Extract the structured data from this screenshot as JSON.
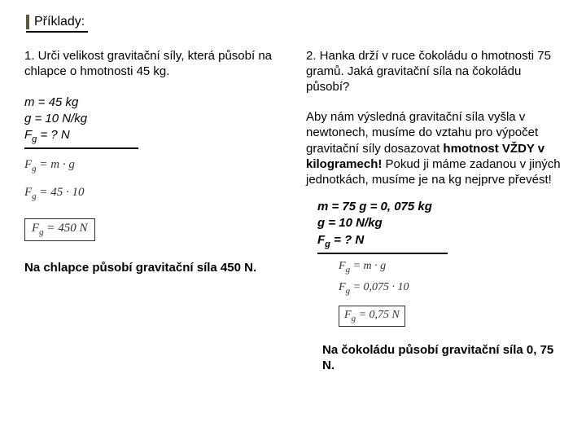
{
  "title": "Příklady:",
  "left": {
    "problem": "1. Urči velikost gravitační síly, která působí na chlapce o hmotnosti  45 kg.",
    "given": {
      "m": "m = 45 kg",
      "g": "g = 10 N/kg",
      "Fg_pre": "F",
      "Fg_sub": "g",
      "Fg_post": " = ? N"
    },
    "formulas": {
      "f1_lhs": "F",
      "f1_sub": "g",
      "f1_rhs": " = m · g",
      "f2_lhs": "F",
      "f2_sub": "g",
      "f2_rhs": " = 45 · 10",
      "f3_lhs": "F",
      "f3_sub": "g",
      "f3_rhs": " = 450 N"
    },
    "answer": "Na chlapce působí gravitační síla 450 N."
  },
  "right": {
    "problem": "2. Hanka drží v ruce čokoládu o hmotnosti 75 gramů. Jaká gravitační síla na čokoládu působí?",
    "note_a": "Aby nám výsledná gravitační síla vyšla v newtonech, musíme do vztahu pro výpočet gravitační síly dosazovat ",
    "note_b_bold": "hmotnost VŽDY v kilogramech! ",
    "note_c": "Pokud ji máme zadanou v jiných jednotkách, musíme je na kg nejprve převést!",
    "given": {
      "m": "m = 75 g = 0, 075 kg",
      "g": "g = 10 N/kg",
      "Fg_pre": "F",
      "Fg_sub": "g",
      "Fg_post": " = ? N"
    },
    "formulas": {
      "f1_lhs": "F",
      "f1_sub": "g",
      "f1_rhs": " = m · g",
      "f2_lhs": "F",
      "f2_sub": "g",
      "f2_rhs": " = 0,075 · 10",
      "f3_lhs": "F",
      "f3_sub": "g",
      "f3_rhs": " = 0,75 N"
    },
    "answer": "Na čokoládu působí gravitační síla 0, 75 N."
  }
}
